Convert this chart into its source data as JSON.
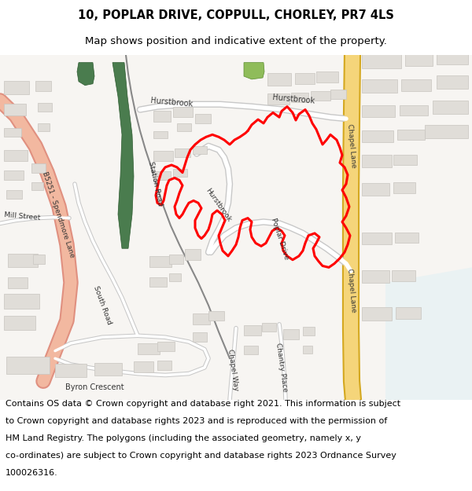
{
  "title_line1": "10, POPLAR DRIVE, COPPULL, CHORLEY, PR7 4LS",
  "title_line2": "Map shows position and indicative extent of the property.",
  "footer_text": "Contains OS data © Crown copyright and database right 2021. This information is subject to Crown copyright and database rights 2023 and is reproduced with the permission of HM Land Registry. The polygons (including the associated geometry, namely x, y co-ordinates) are subject to Crown copyright and database rights 2023 Ordnance Survey 100026316.",
  "title_fontsize": 10.5,
  "subtitle_fontsize": 9.5,
  "footer_fontsize": 8.0,
  "fig_width": 6.0,
  "fig_height": 6.25,
  "dpi": 100,
  "title_color": "#000000",
  "footer_color": "#000000",
  "bg_color": "#ffffff",
  "map_bg": "#f7f5f2",
  "road_white": "#ffffff",
  "road_gray": "#c8c8c8",
  "road_yellow": "#f5d57a",
  "road_yellow_border": "#d4a820",
  "road_pink": "#f2b8a0",
  "road_pink_border": "#e09080",
  "building_fill": "#e0ddd8",
  "building_edge": "#c8c5c0",
  "green_fill": "#4a7c4e",
  "highlight_red": "#ff0000",
  "label_color": "#333333",
  "light_blue": "#d8eef5"
}
